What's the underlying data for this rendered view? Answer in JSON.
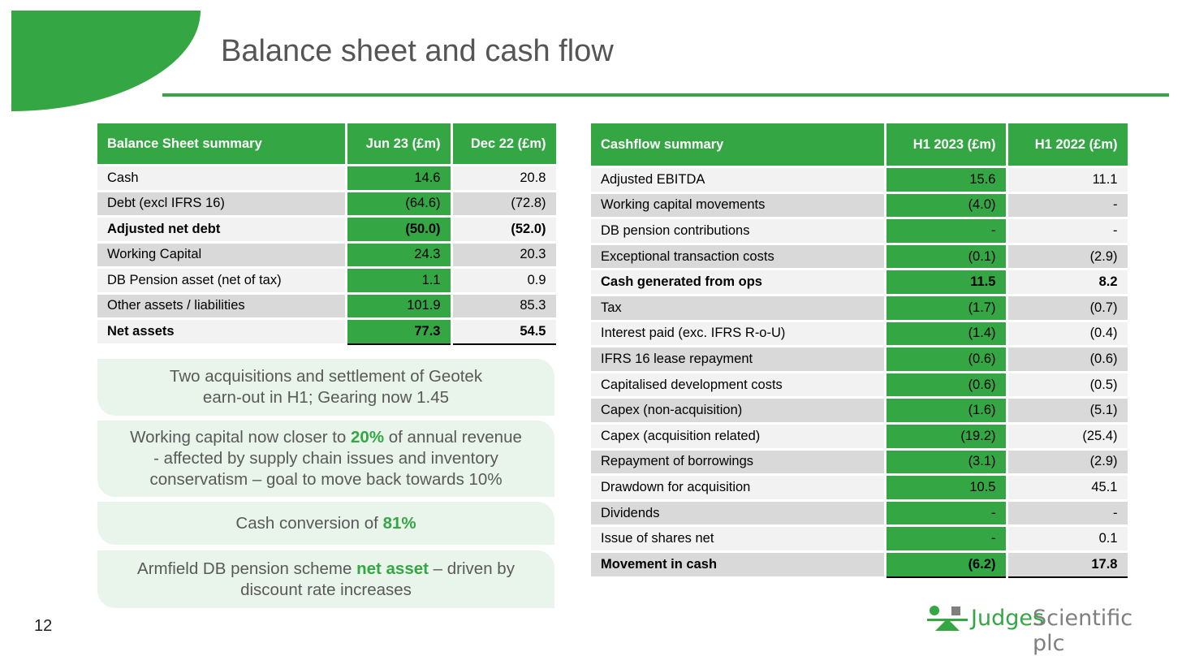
{
  "title": "Balance sheet and cash flow",
  "page_number": "12",
  "colors": {
    "brand_green": "#35a644",
    "callout_bg": "#e9f4ea",
    "row_light": "#f2f2f2",
    "row_dark": "#d9d9d9",
    "title_grey": "#555555"
  },
  "balance_sheet": {
    "headers": [
      "Balance Sheet summary",
      "Jun 23 (£m)",
      "Dec 22 (£m)"
    ],
    "rows": [
      {
        "label": "Cash",
        "cur": "14.6",
        "prev": "20.8"
      },
      {
        "label": "Debt (excl IFRS 16)",
        "cur": "(64.6)",
        "prev": "(72.8)"
      },
      {
        "label": "Adjusted net debt",
        "cur": "(50.0)",
        "prev": "(52.0)"
      },
      {
        "label": "Working Capital",
        "cur": "24.3",
        "prev": "20.3"
      },
      {
        "label": "DB Pension asset (net of tax)",
        "cur": "1.1",
        "prev": "0.9"
      },
      {
        "label": "Other assets / liabilities",
        "cur": "101.9",
        "prev": "85.3"
      },
      {
        "label": "Net assets",
        "cur": "77.3",
        "prev": "54.5"
      }
    ]
  },
  "cashflow": {
    "headers": [
      "Cashflow summary",
      "H1 2023 (£m)",
      "H1 2022 (£m)"
    ],
    "rows": [
      {
        "label": "Adjusted EBITDA",
        "cur": "15.6",
        "prev": "11.1"
      },
      {
        "label": "Working capital movements",
        "cur": "(4.0)",
        "prev": "-"
      },
      {
        "label": "DB pension contributions",
        "cur": "-",
        "prev": "-"
      },
      {
        "label": "Exceptional transaction costs",
        "cur": "(0.1)",
        "prev": "(2.9)"
      },
      {
        "label": "Cash generated from ops",
        "cur": "11.5",
        "prev": "8.2"
      },
      {
        "label": "Tax",
        "cur": "(1.7)",
        "prev": "(0.7)"
      },
      {
        "label": "Interest paid (exc. IFRS R-o-U)",
        "cur": "(1.4)",
        "prev": "(0.4)"
      },
      {
        "label": "IFRS 16 lease repayment",
        "cur": "(0.6)",
        "prev": "(0.6)"
      },
      {
        "label": "Capitalised development costs",
        "cur": "(0.6)",
        "prev": "(0.5)"
      },
      {
        "label": "Capex (non-acquisition)",
        "cur": "(1.6)",
        "prev": "(5.1)"
      },
      {
        "label": "Capex (acquisition related)",
        "cur": "(19.2)",
        "prev": "(25.4)"
      },
      {
        "label": "Repayment of borrowings",
        "cur": "(3.1)",
        "prev": "(2.9)"
      },
      {
        "label": "Drawdown for acquisition",
        "cur": "10.5",
        "prev": "45.1"
      },
      {
        "label": "Dividends",
        "cur": "-",
        "prev": "-"
      },
      {
        "label": "Issue of shares net",
        "cur": "-",
        "prev": "0.1"
      },
      {
        "label": "Movement in cash",
        "cur": "(6.2)",
        "prev": "17.8"
      }
    ]
  },
  "callouts": {
    "c1": {
      "line1": "Two acquisitions and settlement of Geotek",
      "line2": "earn-out in H1; Gearing now 1.45"
    },
    "c2": {
      "pre": "Working capital now closer to ",
      "hl": "20%",
      "post": " of annual revenue",
      "line2": "- affected by supply chain issues and inventory",
      "line3": "conservatism – goal to move back towards 10%"
    },
    "c3": {
      "pre": "Cash conversion of ",
      "hl": "81%"
    },
    "c4": {
      "pre": "Armfield DB pension scheme ",
      "hl": "net asset",
      "post": " – driven by",
      "line2": "discount rate increases"
    }
  },
  "logo": {
    "word1": "Judges",
    "word2": "Scientific plc"
  }
}
